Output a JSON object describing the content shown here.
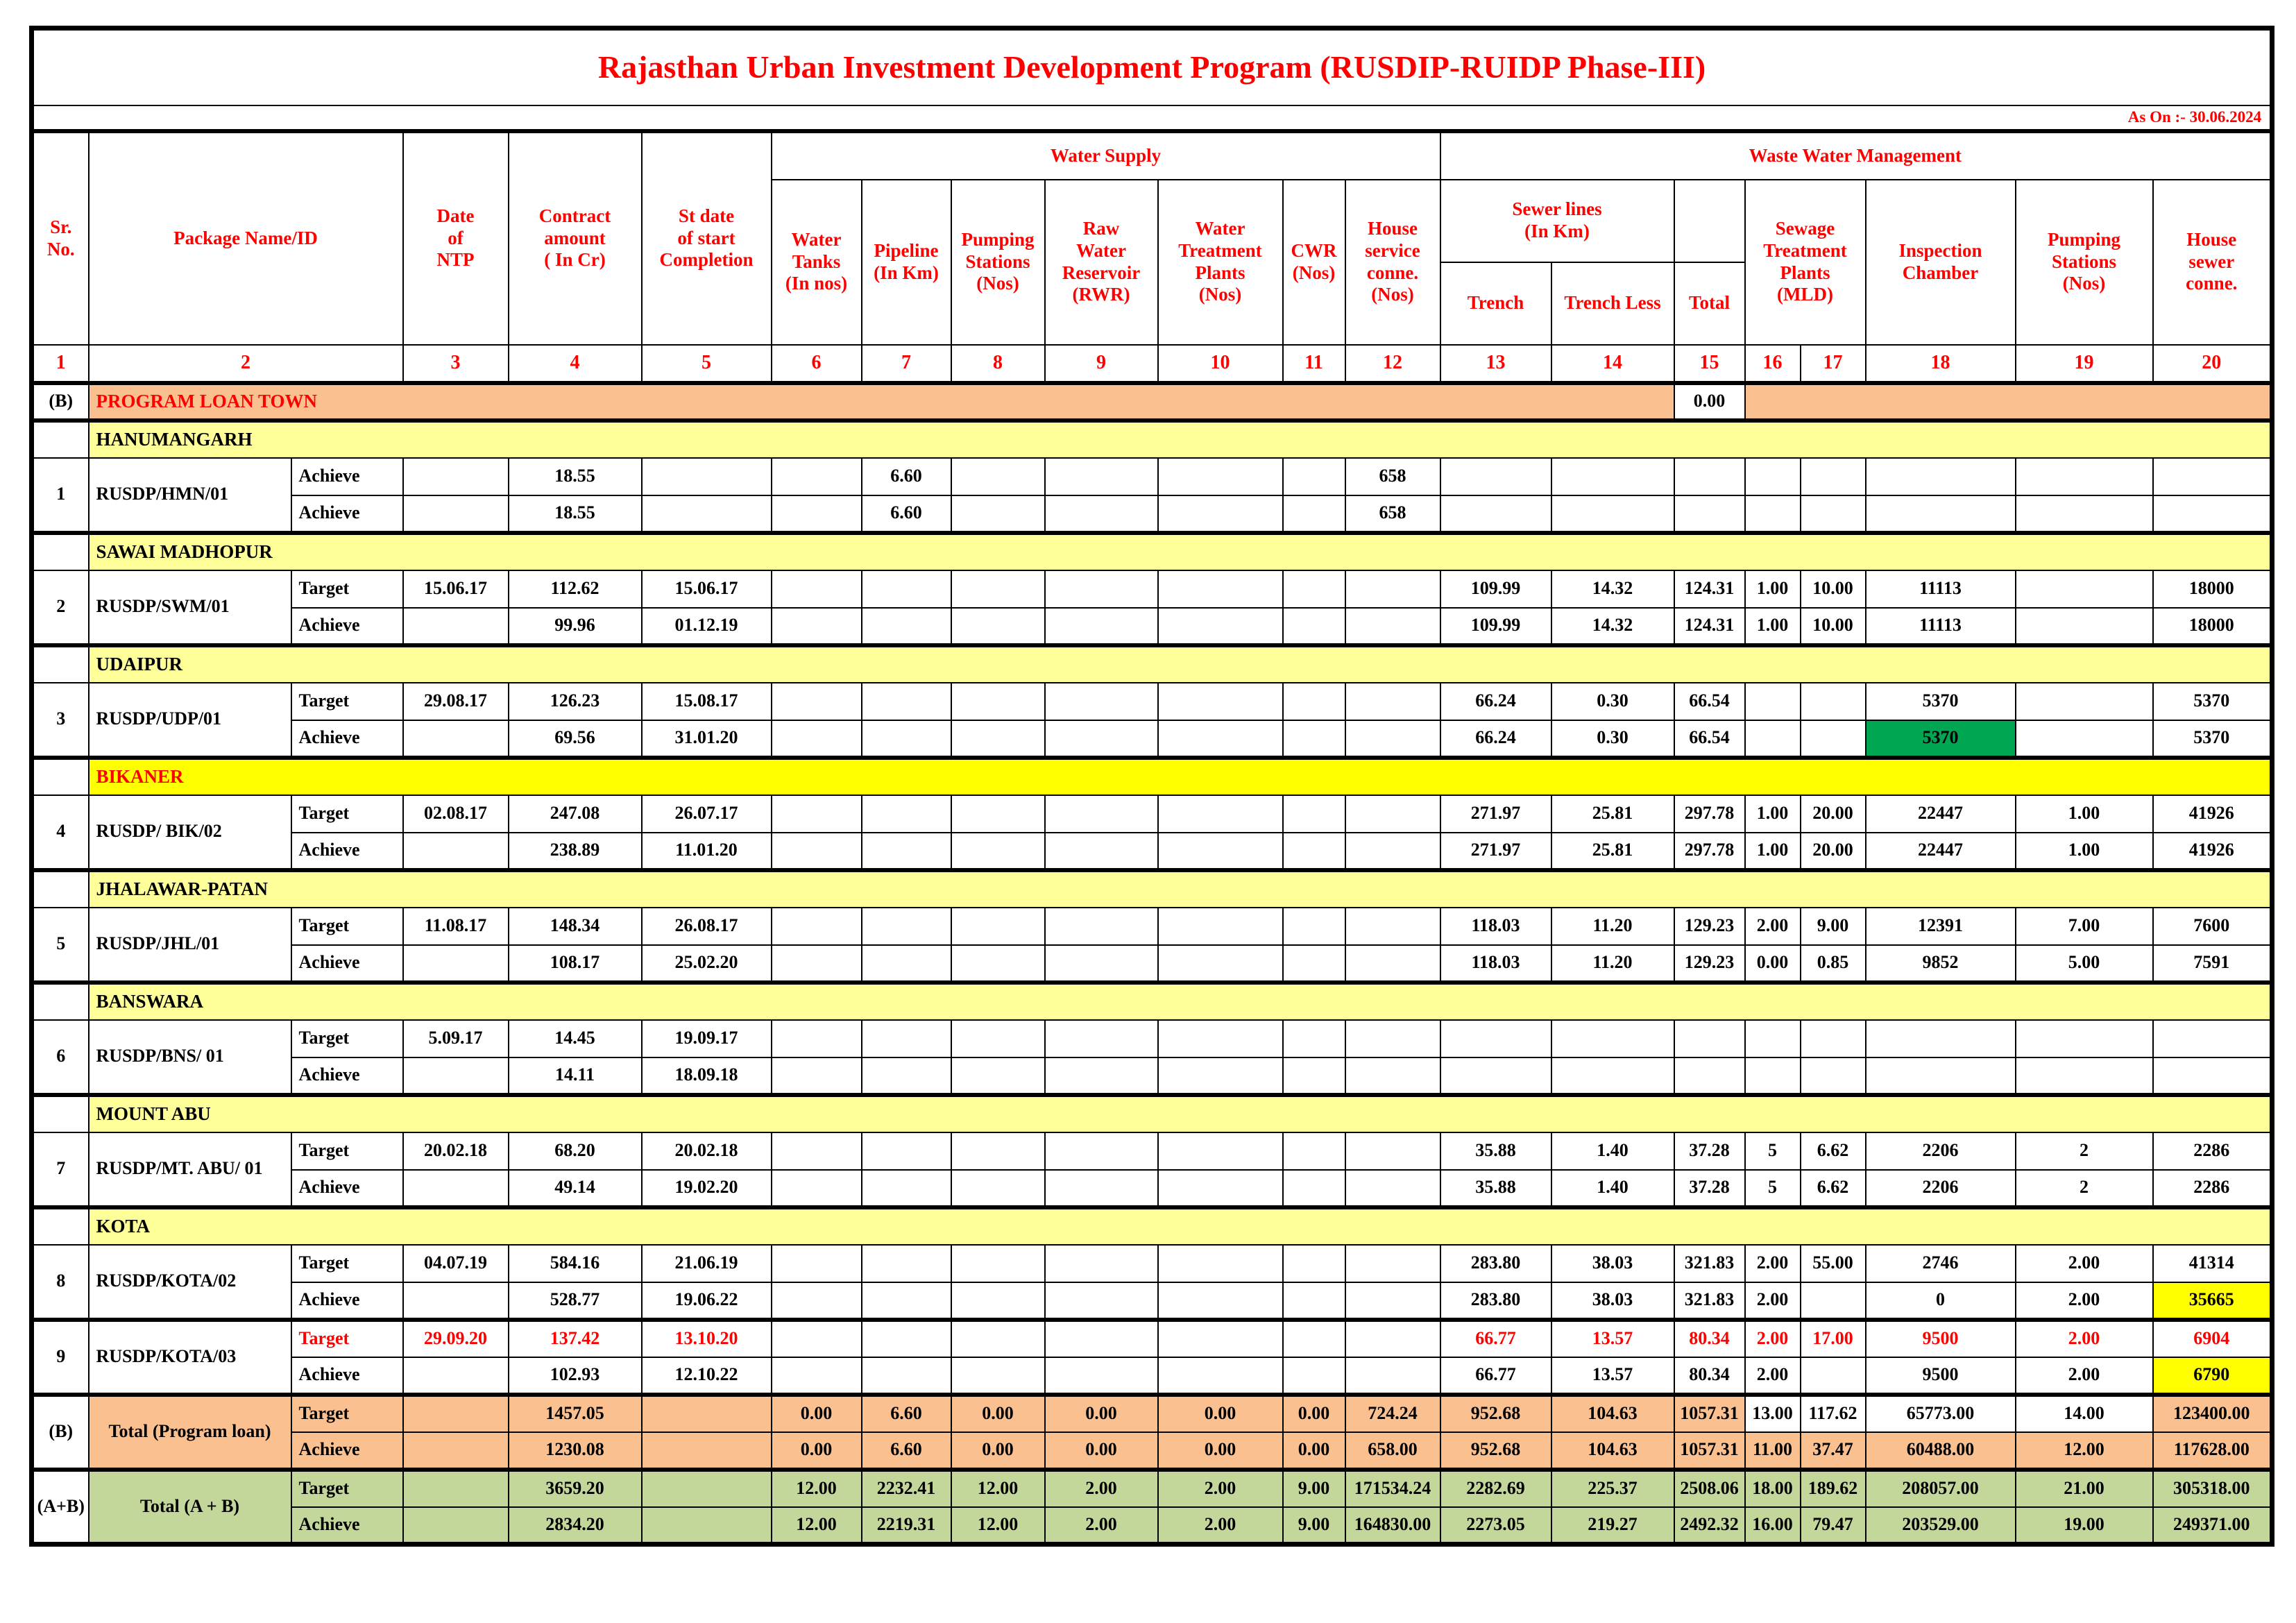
{
  "title": "Rajasthan Urban Investment Development Program (RUSDIP-RUIDP Phase-III)",
  "as_on": "As On :- 30.06.2024",
  "colors": {
    "red": "#FF0000",
    "peach": "#FAC090",
    "paleyellow": "#FFFF99",
    "brightyellow": "#FFFF00",
    "greencell": "#00A651",
    "lightgreen": "#C4D79B"
  },
  "header": {
    "sr": "Sr.\nNo.",
    "package": "Package Name/ID",
    "ntp": "Date\nof\nNTP",
    "contract": "Contract\namount\n( In Cr)",
    "stdate": "St date\nof start\nCompletion",
    "water_supply": "Water Supply",
    "wwm": "Waste Water Management",
    "ws_cols": [
      "Water\nTanks\n(In nos)",
      "Pipeline\n(In Km)",
      "Pumping\nStations\n(Nos)",
      "Raw\nWater\nReservoir\n(RWR)",
      "Water\nTreatment\nPlants\n(Nos)",
      "CWR\n(Nos)",
      "House\nservice\nconne.\n(Nos)"
    ],
    "sewer": "Sewer lines\n(In Km)",
    "trench": "Trench",
    "trench_less": "Trench Less",
    "total": "Total",
    "stp": "Sewage\nTreatment\nPlants\n(MLD)",
    "inspection": "Inspection\nChamber",
    "pumping_19": "Pumping\nStations\n(Nos)",
    "house_20": "House\nsewer\nconne.",
    "numbers": [
      "1",
      "2",
      "3",
      "4",
      "5",
      "6",
      "7",
      "8",
      "9",
      "10",
      "11",
      "12",
      "13",
      "14",
      "15",
      "16",
      "17",
      "18",
      "19",
      "20"
    ]
  },
  "banner": {
    "sr": "(B)",
    "label": "PROGRAM LOAN TOWN",
    "total_value": "0.00"
  },
  "groups": [
    {
      "town": "HANUMANGARH",
      "bright": false,
      "sr": "1",
      "package": "RUSDP/HMN/01",
      "rows": [
        {
          "label": "Achieve",
          "red": false,
          "cells": [
            "",
            "18.55",
            "",
            "",
            "6.60",
            "",
            "",
            "",
            "",
            "658",
            "",
            "",
            "",
            "",
            "",
            "",
            "",
            ""
          ]
        },
        {
          "label": "Achieve",
          "red": false,
          "cells": [
            "",
            "18.55",
            "",
            "",
            "6.60",
            "",
            "",
            "",
            "",
            "658",
            "",
            "",
            "",
            "",
            "",
            "",
            "",
            ""
          ]
        }
      ]
    },
    {
      "town": "SAWAI MADHOPUR",
      "bright": false,
      "sr": "2",
      "package": "RUSDP/SWM/01",
      "rows": [
        {
          "label": "Target",
          "red": false,
          "cells": [
            "15.06.17",
            "112.62",
            "15.06.17",
            "",
            "",
            "",
            "",
            "",
            "",
            "",
            "109.99",
            "14.32",
            "124.31",
            "1.00",
            "10.00",
            "11113",
            "",
            "18000"
          ]
        },
        {
          "label": "Achieve",
          "red": false,
          "cells": [
            "",
            "99.96",
            "01.12.19",
            "",
            "",
            "",
            "",
            "",
            "",
            "",
            "109.99",
            "14.32",
            "124.31",
            "1.00",
            "10.00",
            "11113",
            "",
            "18000"
          ]
        }
      ]
    },
    {
      "town": "UDAIPUR",
      "bright": false,
      "sr": "3",
      "package": "RUSDP/UDP/01",
      "rows": [
        {
          "label": "Target",
          "red": false,
          "cells": [
            "29.08.17",
            "126.23",
            "15.08.17",
            "",
            "",
            "",
            "",
            "",
            "",
            "",
            "66.24",
            "0.30",
            "66.54",
            "",
            "",
            "5370",
            "",
            "5370"
          ]
        },
        {
          "label": "Achieve",
          "red": false,
          "hl": {
            "15": "green"
          },
          "cells": [
            "",
            "69.56",
            "31.01.20",
            "",
            "",
            "",
            "",
            "",
            "",
            "",
            "66.24",
            "0.30",
            "66.54",
            "",
            "",
            "5370",
            "",
            "5370"
          ]
        }
      ]
    },
    {
      "town": "BIKANER",
      "bright": true,
      "sr": "4",
      "package": "RUSDP/ BIK/02",
      "rows": [
        {
          "label": "Target",
          "red": false,
          "cells": [
            "02.08.17",
            "247.08",
            "26.07.17",
            "",
            "",
            "",
            "",
            "",
            "",
            "",
            "271.97",
            "25.81",
            "297.78",
            "1.00",
            "20.00",
            "22447",
            "1.00",
            "41926"
          ]
        },
        {
          "label": "Achieve",
          "red": false,
          "cells": [
            "",
            "238.89",
            "11.01.20",
            "",
            "",
            "",
            "",
            "",
            "",
            "",
            "271.97",
            "25.81",
            "297.78",
            "1.00",
            "20.00",
            "22447",
            "1.00",
            "41926"
          ]
        }
      ]
    },
    {
      "town": "JHALAWAR-PATAN",
      "bright": false,
      "sr": "5",
      "package": "RUSDP/JHL/01",
      "rows": [
        {
          "label": "Target",
          "red": false,
          "cells": [
            "11.08.17",
            "148.34",
            "26.08.17",
            "",
            "",
            "",
            "",
            "",
            "",
            "",
            "118.03",
            "11.20",
            "129.23",
            "2.00",
            "9.00",
            "12391",
            "7.00",
            "7600"
          ]
        },
        {
          "label": "Achieve",
          "red": false,
          "cells": [
            "",
            "108.17",
            "25.02.20",
            "",
            "",
            "",
            "",
            "",
            "",
            "",
            "118.03",
            "11.20",
            "129.23",
            "0.00",
            "0.85",
            "9852",
            "5.00",
            "7591"
          ]
        }
      ]
    },
    {
      "town": "BANSWARA",
      "bright": false,
      "sr": "6",
      "package": "RUSDP/BNS/ 01",
      "rows": [
        {
          "label": "Target",
          "red": false,
          "cells": [
            "5.09.17",
            "14.45",
            "19.09.17",
            "",
            "",
            "",
            "",
            "",
            "",
            "",
            "",
            "",
            "",
            "",
            "",
            "",
            "",
            ""
          ]
        },
        {
          "label": "Achieve",
          "red": false,
          "cells": [
            "",
            "14.11",
            "18.09.18",
            "",
            "",
            "",
            "",
            "",
            "",
            "",
            "",
            "",
            "",
            "",
            "",
            "",
            "",
            ""
          ]
        }
      ]
    },
    {
      "town": "MOUNT ABU",
      "bright": false,
      "sr": "7",
      "package": "RUSDP/MT. ABU/ 01",
      "rows": [
        {
          "label": "Target",
          "red": false,
          "cells": [
            "20.02.18",
            "68.20",
            "20.02.18",
            "",
            "",
            "",
            "",
            "",
            "",
            "",
            "35.88",
            "1.40",
            "37.28",
            "5",
            "6.62",
            "2206",
            "2",
            "2286"
          ]
        },
        {
          "label": "Achieve",
          "red": false,
          "cells": [
            "",
            "49.14",
            "19.02.20",
            "",
            "",
            "",
            "",
            "",
            "",
            "",
            "35.88",
            "1.40",
            "37.28",
            "5",
            "6.62",
            "2206",
            "2",
            "2286"
          ]
        }
      ]
    },
    {
      "town": "KOTA",
      "bright": false,
      "sr": "8",
      "package": "RUSDP/KOTA/02",
      "rows": [
        {
          "label": "Target",
          "red": false,
          "cells": [
            "04.07.19",
            "584.16",
            "21.06.19",
            "",
            "",
            "",
            "",
            "",
            "",
            "",
            "283.80",
            "38.03",
            "321.83",
            "2.00",
            "55.00",
            "2746",
            "2.00",
            "41314"
          ]
        },
        {
          "label": "Achieve",
          "red": false,
          "hl": {
            "17": "yellow"
          },
          "cells": [
            "",
            "528.77",
            "19.06.22",
            "",
            "",
            "",
            "",
            "",
            "",
            "",
            "283.80",
            "38.03",
            "321.83",
            "2.00",
            "",
            "0",
            "2.00",
            "35665"
          ]
        }
      ]
    },
    {
      "town": "",
      "bright": false,
      "sr": "9",
      "package": "RUSDP/KOTA/03",
      "rows": [
        {
          "label": "Target",
          "red": true,
          "cells": [
            "29.09.20",
            "137.42",
            "13.10.20",
            "",
            "",
            "",
            "",
            "",
            "",
            "",
            "66.77",
            "13.57",
            "80.34",
            "2.00",
            "17.00",
            "9500",
            "2.00",
            "6904"
          ]
        },
        {
          "label": "Achieve",
          "red": false,
          "hl": {
            "17": "yellow"
          },
          "cells": [
            "",
            "102.93",
            "12.10.22",
            "",
            "",
            "",
            "",
            "",
            "",
            "",
            "66.77",
            "13.57",
            "80.34",
            "2.00",
            "",
            "9500",
            "2.00",
            "6790"
          ]
        }
      ]
    }
  ],
  "totals": [
    {
      "sr": "(B)",
      "label": "Total (Program loan)",
      "style": "peach",
      "rows": [
        {
          "label": "Target",
          "hl": {
            "13": "white",
            "14": "white",
            "15": "white",
            "16": "white"
          },
          "cells": [
            "",
            "1457.05",
            "",
            "0.00",
            "6.60",
            "0.00",
            "0.00",
            "0.00",
            "0.00",
            "724.24",
            "952.68",
            "104.63",
            "1057.31",
            "13.00",
            "117.62",
            "65773.00",
            "14.00",
            "123400.00"
          ]
        },
        {
          "label": "Achieve",
          "cells": [
            "",
            "1230.08",
            "",
            "0.00",
            "6.60",
            "0.00",
            "0.00",
            "0.00",
            "0.00",
            "658.00",
            "952.68",
            "104.63",
            "1057.31",
            "11.00",
            "37.47",
            "60488.00",
            "12.00",
            "117628.00"
          ]
        }
      ]
    },
    {
      "sr": "(A+B)",
      "label": "Total (A + B)",
      "style": "green",
      "rows": [
        {
          "label": "Target",
          "cells": [
            "",
            "3659.20",
            "",
            "12.00",
            "2232.41",
            "12.00",
            "2.00",
            "2.00",
            "9.00",
            "171534.24",
            "2282.69",
            "225.37",
            "2508.06",
            "18.00",
            "189.62",
            "208057.00",
            "21.00",
            "305318.00"
          ]
        },
        {
          "label": "Achieve",
          "cells": [
            "",
            "2834.20",
            "",
            "12.00",
            "2219.31",
            "12.00",
            "2.00",
            "2.00",
            "9.00",
            "164830.00",
            "2273.05",
            "219.27",
            "2492.32",
            "16.00",
            "79.47",
            "203529.00",
            "19.00",
            "249371.00"
          ]
        }
      ]
    }
  ]
}
